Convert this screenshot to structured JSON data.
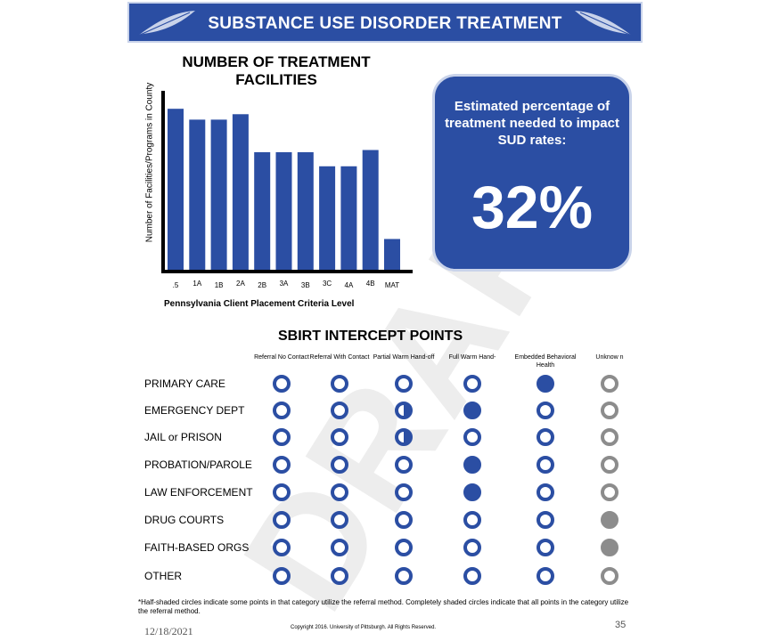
{
  "header": {
    "title": "SUBSTANCE USE DISORDER TREATMENT"
  },
  "watermark": "DRAFT",
  "chart_data": {
    "type": "bar",
    "title": "NUMBER OF TREATMENT FACILITIES",
    "xlabel": "Pennsylvania Client Placement Criteria Level",
    "ylabel": "Number of Facilities/Programs in County",
    "categories": [
      ".5",
      "1A",
      "1B",
      "2A",
      "2B",
      "3A",
      "3B",
      "3C",
      "4A",
      "4B",
      "MAT"
    ],
    "values": [
      15,
      14,
      14,
      14.5,
      11,
      11,
      11,
      9.7,
      9.7,
      11.2,
      3
    ],
    "ylim": [
      0,
      16
    ],
    "color": "#2b4ea3"
  },
  "callout": {
    "text": "Estimated percentage of treatment needed to impact SUD rates:",
    "value": "32%"
  },
  "sbirt": {
    "title": "SBIRT INTERCEPT POINTS",
    "columns": [
      "Referral No Contact",
      "Referral With Contact",
      "Partial Warm Hand-off",
      "Full Warm Hand-",
      "Embedded Behavioral Health",
      "Unknow n"
    ],
    "rows": [
      {
        "label": "PRIMARY CARE",
        "states": [
          "empty",
          "empty",
          "empty",
          "empty",
          "full",
          "grey-empty"
        ]
      },
      {
        "label": "EMERGENCY DEPT",
        "states": [
          "empty",
          "empty",
          "half",
          "full",
          "empty",
          "grey-empty"
        ]
      },
      {
        "label": "JAIL or PRISON",
        "states": [
          "empty",
          "empty",
          "half",
          "empty",
          "empty",
          "grey-empty"
        ]
      },
      {
        "label": "PROBATION/PAROLE",
        "states": [
          "empty",
          "empty",
          "empty",
          "full",
          "empty",
          "grey-empty"
        ]
      },
      {
        "label": "LAW ENFORCEMENT",
        "states": [
          "empty",
          "empty",
          "empty",
          "full",
          "empty",
          "grey-empty"
        ]
      },
      {
        "label": "DRUG COURTS",
        "states": [
          "empty",
          "empty",
          "empty",
          "empty",
          "empty",
          "grey-full"
        ]
      },
      {
        "label": "FAITH-BASED ORGS",
        "states": [
          "empty",
          "empty",
          "empty",
          "empty",
          "empty",
          "grey-full"
        ]
      },
      {
        "label": "OTHER",
        "states": [
          "empty",
          "empty",
          "empty",
          "empty",
          "empty",
          "grey-empty"
        ]
      }
    ]
  },
  "footer": {
    "footnote": "*Half-shaded circles indicate some points in that category utilize the referral method. Completely shaded circles indicate that all points in the category utilize the referral method.",
    "date": "12/18/2021",
    "copyright": "Copyright 2016. University of Pittsburgh. All Rights Reserved.",
    "page_number": "35"
  }
}
